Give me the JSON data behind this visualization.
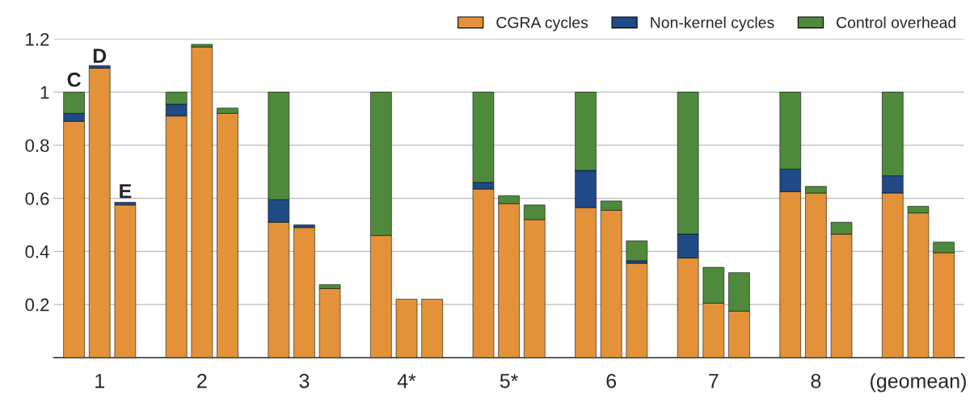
{
  "chart_data": {
    "type": "bar",
    "stacked": true,
    "categories": [
      null,
      "1",
      null,
      null,
      "2",
      null,
      null,
      "3",
      null,
      null,
      "4*",
      null,
      null,
      "5*",
      null,
      null,
      "6",
      null,
      null,
      "7",
      null,
      null,
      "8",
      null,
      null,
      "(geomean)",
      null
    ],
    "series": [
      {
        "name": "CGRA cycles",
        "color": "#e3923a",
        "values": [
          0.89,
          1.09,
          0.575,
          0.91,
          1.17,
          0.92,
          0.51,
          0.49,
          0.26,
          0.46,
          0.22,
          0.22,
          0.635,
          0.58,
          0.52,
          0.565,
          0.555,
          0.355,
          0.375,
          0.205,
          0.175,
          0.625,
          0.62,
          0.465,
          0.62,
          0.545,
          0.395
        ]
      },
      {
        "name": "Non-kernel cycles",
        "color": "#1f4a86",
        "values": [
          0.03,
          0.01,
          0.01,
          0.045,
          null,
          null,
          0.085,
          0.01,
          null,
          null,
          null,
          null,
          0.025,
          null,
          null,
          0.14,
          null,
          0.01,
          0.09,
          null,
          null,
          0.085,
          null,
          null,
          0.065,
          null,
          null
        ]
      },
      {
        "name": "Control overhead",
        "color": "#4f8a3c",
        "values": [
          0.08,
          null,
          null,
          0.045,
          0.01,
          0.02,
          0.405,
          null,
          0.015,
          0.54,
          null,
          null,
          0.34,
          0.03,
          0.055,
          0.295,
          0.035,
          0.075,
          0.535,
          0.135,
          0.145,
          0.29,
          0.025,
          0.045,
          0.315,
          0.025,
          0.04
        ]
      }
    ],
    "annotations": [
      {
        "text": "C",
        "y": 1.0
      },
      {
        "text": "D",
        "y": 1.09
      },
      {
        "text": "E",
        "y": 0.58
      }
    ],
    "ylim": [
      0,
      1.2
    ],
    "yticks": [
      0.2,
      0.4,
      0.6,
      0.8,
      1,
      1.2
    ],
    "grid": "y",
    "legend": "top right"
  }
}
